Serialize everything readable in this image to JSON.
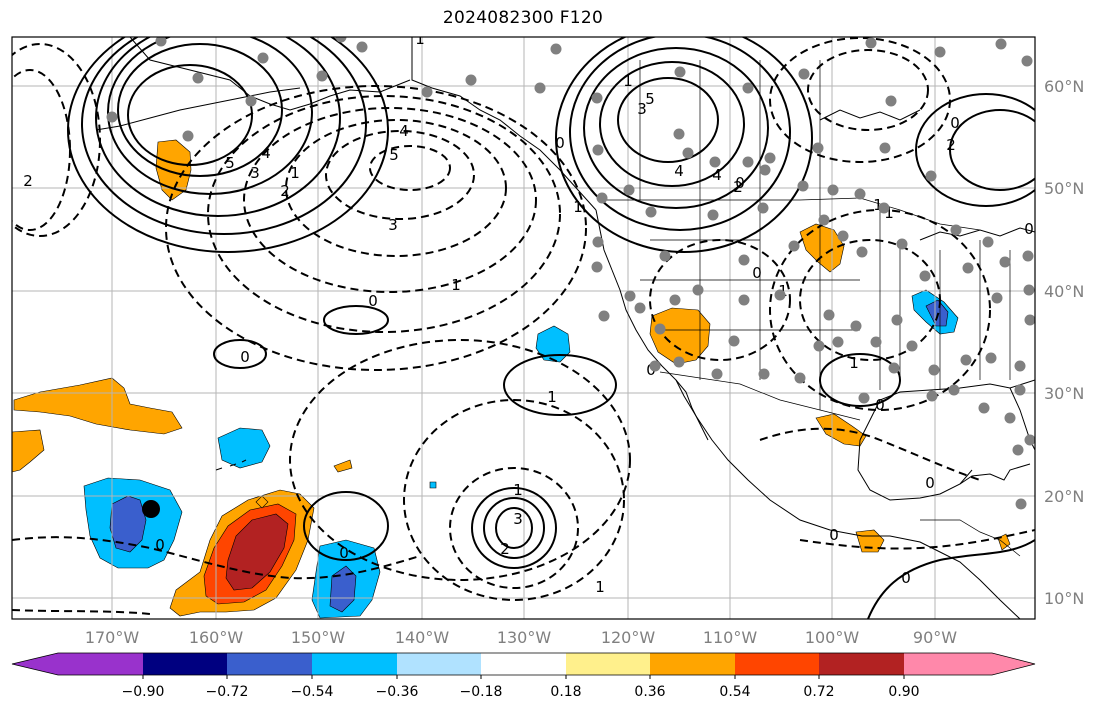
{
  "title": "2024082300 F120",
  "map": {
    "lon_labels": [
      "170°W",
      "160°W",
      "150°W",
      "140°W",
      "130°W",
      "120°W",
      "110°W",
      "100°W",
      "90°W"
    ],
    "lat_labels": [
      "60°N",
      "50°N",
      "40°N",
      "30°N",
      "20°N",
      "10°N"
    ],
    "contour_labels": [
      {
        "name": "label-1-top",
        "text": "1"
      },
      {
        "name": "label-5-nw",
        "text": "5"
      },
      {
        "name": "label-4-nw",
        "text": "4"
      },
      {
        "name": "label-3-nw",
        "text": "3"
      },
      {
        "name": "label-2-nw",
        "text": "2"
      },
      {
        "name": "label-1-nw",
        "text": "1"
      },
      {
        "name": "label-2-left",
        "text": "2"
      },
      {
        "name": "label-neg4",
        "text": "4"
      },
      {
        "name": "label-neg5",
        "text": "5"
      },
      {
        "name": "label-neg3",
        "text": "3"
      },
      {
        "name": "label-neg1",
        "text": "1"
      },
      {
        "name": "label-0-mid",
        "text": "0"
      },
      {
        "name": "label-0-small",
        "text": "0"
      },
      {
        "name": "label-0-bl",
        "text": "0"
      },
      {
        "name": "label-4-cent",
        "text": "4"
      },
      {
        "name": "label-1-high",
        "text": "1"
      },
      {
        "name": "label-3-high",
        "text": "3"
      },
      {
        "name": "label-5-high",
        "text": "5"
      },
      {
        "name": "label-4-high",
        "text": "4"
      },
      {
        "name": "label-2-high",
        "text": "2"
      },
      {
        "name": "label-0-high",
        "text": "0"
      },
      {
        "name": "label-1-coast",
        "text": "1"
      },
      {
        "name": "label-0-coast",
        "text": "0"
      },
      {
        "name": "label-1-ne",
        "text": "1"
      },
      {
        "name": "label-0-ne",
        "text": "0"
      },
      {
        "name": "label-2-ne",
        "text": "2"
      },
      {
        "name": "label-1-sw",
        "text": "1"
      },
      {
        "name": "label-0-sw",
        "text": "0"
      },
      {
        "name": "label-0-sw2",
        "text": "0"
      },
      {
        "name": "label-1-hi2",
        "text": "1"
      },
      {
        "name": "label-1-e",
        "text": "1"
      },
      {
        "name": "label-0-e",
        "text": "0"
      },
      {
        "name": "label-0-mex",
        "text": "0"
      },
      {
        "name": "label-1-cmex",
        "text": "1"
      },
      {
        "name": "label-0-cmex",
        "text": "0"
      },
      {
        "name": "label-3-center",
        "text": "3"
      },
      {
        "name": "label-2-center",
        "text": "2"
      },
      {
        "name": "label-1-center",
        "text": "1"
      },
      {
        "name": "label-0-center",
        "text": "0"
      },
      {
        "name": "label-1-bottom",
        "text": "1"
      },
      {
        "name": "label-0-bottom",
        "text": "0"
      },
      {
        "name": "label-0-br",
        "text": "0"
      }
    ]
  },
  "colorbar": {
    "colors": [
      "#9932cc",
      "#000080",
      "#3a5fcd",
      "#00bfff",
      "#b0e2ff",
      "#ffffff",
      "#fff08c",
      "#ffa500",
      "#ff4500",
      "#b22222",
      "#ff88aa"
    ],
    "tick_labels": [
      "−0.90",
      "−0.72",
      "−0.54",
      "−0.36",
      "−0.18",
      "0.18",
      "0.36",
      "0.54",
      "0.72",
      "0.90"
    ]
  }
}
